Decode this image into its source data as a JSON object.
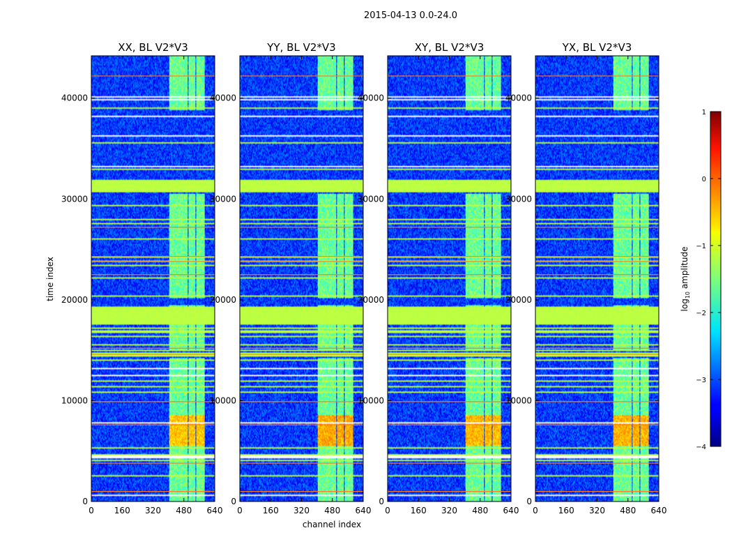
{
  "chart_data": {
    "type": "heatmap",
    "suptitle": "2015-04-13 0.0-24.0",
    "xlabel": "channel index",
    "ylabel": "time index",
    "panels": [
      {
        "title": "XX, BL V2*V3"
      },
      {
        "title": "YY, BL V2*V3"
      },
      {
        "title": "XY, BL V2*V3"
      },
      {
        "title": "YX, BL V2*V3"
      }
    ],
    "x_range": [
      0,
      640
    ],
    "y_range": [
      0,
      44200
    ],
    "x_ticks": [
      0,
      160,
      320,
      480,
      640
    ],
    "x_tick_labels": [
      "0",
      "160",
      "320",
      "480",
      "640"
    ],
    "y_ticks": [
      0,
      10000,
      20000,
      30000,
      40000
    ],
    "y_tick_labels": [
      "0",
      "10000",
      "20000",
      "30000",
      "40000"
    ],
    "colorbar": {
      "label": "log10 amplitude",
      "label_main": "log",
      "label_sub": "10",
      "label_rest": " amplitude",
      "range": [
        -4,
        1
      ],
      "ticks": [
        1,
        0,
        -1,
        -2,
        -3,
        -4
      ],
      "tick_labels": [
        "1",
        "0",
        "−1",
        "−2",
        "−3",
        "−4"
      ],
      "colormap": "jet"
    },
    "features": {
      "background_level": -3.1,
      "flagged_rows_level": -1.2,
      "flagged_time_bands": [
        [
          14300,
          14750
        ],
        [
          16700,
          17000
        ],
        [
          17600,
          19300
        ],
        [
          30700,
          31900
        ]
      ],
      "rfi_channel_bands": [
        [
          405,
          458
        ],
        [
          462,
          500
        ],
        [
          505,
          540
        ],
        [
          546,
          588
        ]
      ],
      "rfi_time_ranges": [
        [
          0,
          14200
        ],
        [
          15000,
          19500
        ],
        [
          20200,
          30500
        ],
        [
          38800,
          44200
        ]
      ],
      "strong_rfi_time_range": [
        5500,
        8500
      ],
      "highlight_rows": [
        1000,
        3800,
        7600,
        9900,
        14600,
        15200,
        22500,
        23800,
        24300,
        27200,
        42200
      ]
    }
  }
}
